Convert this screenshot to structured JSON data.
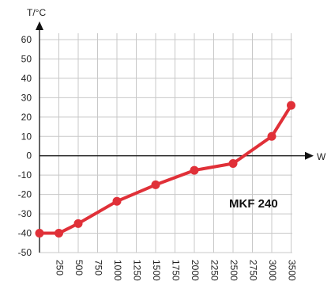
{
  "chart_data": {
    "type": "line",
    "title": "",
    "xlabel": "W",
    "ylabel": "T/°C",
    "x_ticks": [
      "250",
      "500",
      "750",
      "1000",
      "1250",
      "1500",
      "1750",
      "2000",
      "2250",
      "2500",
      "2750",
      "3000",
      "3500"
    ],
    "y_ticks": [
      "60",
      "50",
      "40",
      "30",
      "20",
      "10",
      "0",
      "-10",
      "-20",
      "-30",
      "-40",
      "-50"
    ],
    "ylim": [
      -50,
      60
    ],
    "grid": true,
    "series": [
      {
        "name": "",
        "color": "#e03038",
        "points": [
          {
            "x": 0,
            "y": -40
          },
          {
            "x": 250,
            "y": -40
          },
          {
            "x": 500,
            "y": -35
          },
          {
            "x": 1000,
            "y": -23.5
          },
          {
            "x": 1500,
            "y": -15
          },
          {
            "x": 2000,
            "y": -7.5
          },
          {
            "x": 2500,
            "y": -4
          },
          {
            "x": 3000,
            "y": 10
          },
          {
            "x": 3250,
            "y": 26
          }
        ]
      }
    ],
    "annotation": "MKF 240"
  }
}
